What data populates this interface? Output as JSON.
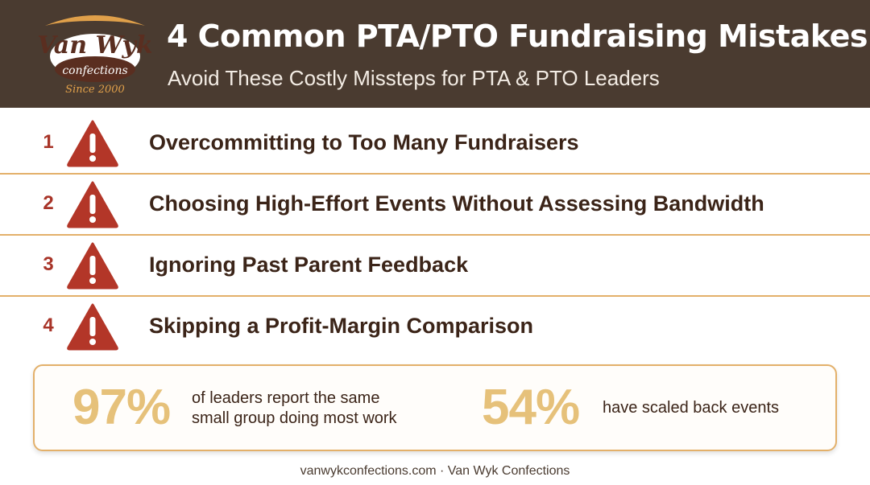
{
  "header": {
    "logo": {
      "brand_text": "Van Wyk",
      "sub_text": "confections",
      "tagline": "Since 2000"
    },
    "title": "4 Common PTA/PTO Fundraising Mistakes",
    "subtitle": "Avoid These Costly Missteps for PTA & PTO Leaders"
  },
  "mistakes": [
    {
      "number": "1",
      "icon": "warning-icon",
      "text": "Overcommitting to Too Many Fundraisers"
    },
    {
      "number": "2",
      "icon": "warning-icon",
      "text": "Choosing High-Effort Events Without Assessing Bandwidth"
    },
    {
      "number": "3",
      "icon": "warning-icon",
      "text": "Ignoring Past Parent Feedback"
    },
    {
      "number": "4",
      "icon": "warning-icon",
      "text": "Skipping a Profit-Margin Comparison"
    }
  ],
  "stats": [
    {
      "value": "97%",
      "label_line1": "of leaders report the same",
      "label_line2": "small group doing most work"
    },
    {
      "value": "54%",
      "label_line1": "have scaled back events",
      "label_line2": ""
    }
  ],
  "footer": "vanwykconfections.com · Van Wyk Confections",
  "colors": {
    "header_bg": "#4a3b30",
    "accent_red": "#a83428",
    "separator": "#e3b06a",
    "stat_gold": "#e6c17a",
    "body_text": "#3b2418"
  }
}
